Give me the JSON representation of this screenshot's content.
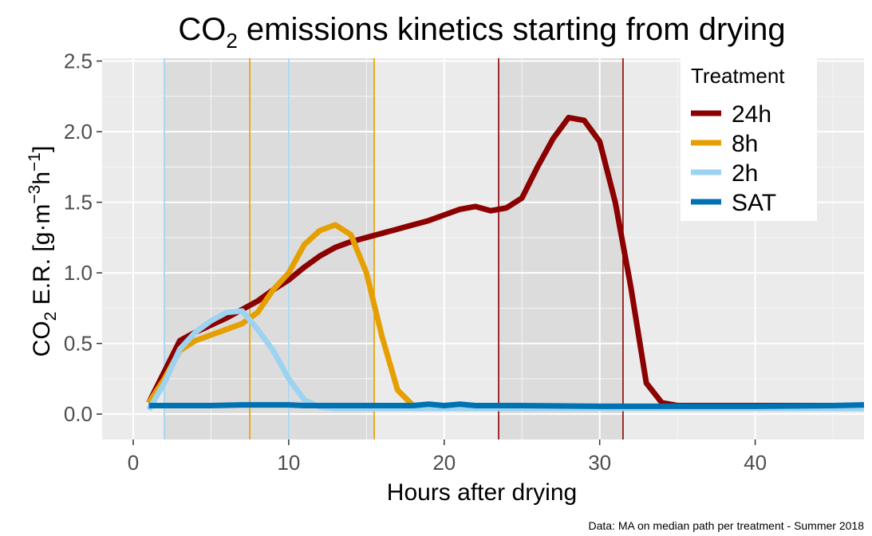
{
  "chart_data": {
    "type": "line",
    "title_main": "CO",
    "title_sub": "2",
    "title_rest": " emissions kinetics starting from drying",
    "xlabel": "Hours after drying",
    "ylabel_parts": [
      "CO",
      "2",
      " E.R. [g",
      "·",
      "m",
      "−3",
      "h",
      "−1",
      "]"
    ],
    "caption": "Data: MA on median path per treatment - Summer 2018",
    "xlim": [
      -2,
      47
    ],
    "ylim": [
      -0.18,
      2.52
    ],
    "x_ticks": [
      0,
      10,
      20,
      30,
      40
    ],
    "x_tick_labels": [
      "0",
      "10",
      "20",
      "30",
      "40"
    ],
    "y_ticks": [
      0,
      0.5,
      1,
      1.5,
      2,
      2.5
    ],
    "y_tick_labels": [
      "0.0",
      "0.5",
      "1.0",
      "1.5",
      "2.0",
      "2.5"
    ],
    "grid": true,
    "legend": {
      "title": "Treatment",
      "placement": "top-right",
      "entries": [
        "24h",
        "8h",
        "2h",
        "SAT"
      ]
    },
    "shaded_intervals": [
      {
        "from": 2,
        "to": 10
      },
      {
        "from": 10,
        "to": 15.5
      },
      {
        "from": 23.5,
        "to": 31.5
      }
    ],
    "vertical_lines": [
      {
        "x": 2,
        "color": "#9dd3f1"
      },
      {
        "x": 7.5,
        "color": "#e69f00"
      },
      {
        "x": 10,
        "color": "#9dd3f1"
      },
      {
        "x": 15.5,
        "color": "#e69f00"
      },
      {
        "x": 23.5,
        "color": "#8b0000"
      },
      {
        "x": 31.5,
        "color": "#8b0000"
      }
    ],
    "series": [
      {
        "name": "24h",
        "color": "#8b0000",
        "x": [
          1,
          2,
          3,
          4,
          5,
          6,
          7,
          8,
          9,
          10,
          11,
          12,
          13,
          14,
          15,
          16,
          17,
          18,
          19,
          20,
          21,
          22,
          23,
          24,
          25,
          26,
          27,
          28,
          29,
          30,
          31,
          32,
          33,
          34,
          35,
          36,
          40,
          47
        ],
        "y": [
          0.08,
          0.3,
          0.52,
          0.58,
          0.63,
          0.68,
          0.74,
          0.8,
          0.88,
          0.95,
          1.04,
          1.12,
          1.18,
          1.22,
          1.25,
          1.28,
          1.31,
          1.34,
          1.37,
          1.41,
          1.45,
          1.47,
          1.44,
          1.46,
          1.53,
          1.75,
          1.95,
          2.1,
          2.08,
          1.93,
          1.5,
          0.9,
          0.22,
          0.08,
          0.06,
          0.06,
          0.06,
          0.06
        ]
      },
      {
        "name": "8h",
        "color": "#e69f00",
        "x": [
          1,
          2,
          3,
          4,
          5,
          6,
          7,
          8,
          9,
          10,
          11,
          12,
          13,
          14,
          15,
          16,
          17,
          18,
          20,
          30,
          47
        ],
        "y": [
          0.08,
          0.25,
          0.45,
          0.52,
          0.56,
          0.6,
          0.64,
          0.72,
          0.88,
          1.0,
          1.2,
          1.3,
          1.34,
          1.27,
          1.0,
          0.55,
          0.17,
          0.06,
          0.05,
          0.05,
          0.05
        ]
      },
      {
        "name": "2h",
        "color": "#9dd3f1",
        "x": [
          1,
          2,
          3,
          4,
          5,
          6,
          7,
          8,
          9,
          10,
          11,
          12,
          13,
          20,
          30,
          40,
          47
        ],
        "y": [
          0.03,
          0.22,
          0.46,
          0.58,
          0.66,
          0.72,
          0.73,
          0.6,
          0.45,
          0.25,
          0.1,
          0.05,
          0.04,
          0.04,
          0.04,
          0.04,
          0.04
        ]
      },
      {
        "name": "SAT",
        "color": "#0072b2",
        "x": [
          1,
          5,
          7,
          10,
          11,
          15,
          18,
          19,
          20,
          21,
          22,
          25,
          30,
          35,
          40,
          45,
          47
        ],
        "y": [
          0.06,
          0.06,
          0.065,
          0.065,
          0.06,
          0.06,
          0.06,
          0.07,
          0.06,
          0.07,
          0.06,
          0.06,
          0.055,
          0.055,
          0.055,
          0.06,
          0.065
        ]
      }
    ]
  }
}
